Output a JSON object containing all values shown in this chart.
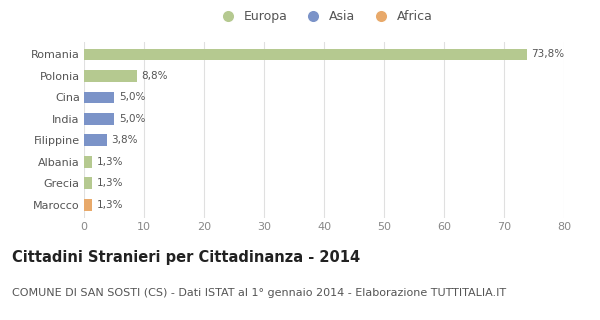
{
  "categories": [
    "Romania",
    "Polonia",
    "Cina",
    "India",
    "Filippine",
    "Albania",
    "Grecia",
    "Marocco"
  ],
  "values": [
    73.8,
    8.8,
    5.0,
    5.0,
    3.8,
    1.3,
    1.3,
    1.3
  ],
  "labels": [
    "73,8%",
    "8,8%",
    "5,0%",
    "5,0%",
    "3,8%",
    "1,3%",
    "1,3%",
    "1,3%"
  ],
  "colors": [
    "#b5c990",
    "#b5c990",
    "#7b93c8",
    "#7b93c8",
    "#7b93c8",
    "#b5c990",
    "#b5c990",
    "#e8a96a"
  ],
  "legend_labels": [
    "Europa",
    "Asia",
    "Africa"
  ],
  "legend_colors": [
    "#b5c990",
    "#7b93c8",
    "#e8a96a"
  ],
  "xlim": [
    0,
    80
  ],
  "xticks": [
    0,
    10,
    20,
    30,
    40,
    50,
    60,
    70,
    80
  ],
  "title": "Cittadini Stranieri per Cittadinanza - 2014",
  "subtitle": "COMUNE DI SAN SOSTI (CS) - Dati ISTAT al 1° gennaio 2014 - Elaborazione TUTTITALIA.IT",
  "bg_color": "#ffffff",
  "plot_bg_color": "#ffffff",
  "grid_color": "#e0e0e0",
  "bar_height": 0.55,
  "title_fontsize": 10.5,
  "subtitle_fontsize": 8,
  "label_fontsize": 7.5,
  "tick_fontsize": 8,
  "legend_fontsize": 9
}
